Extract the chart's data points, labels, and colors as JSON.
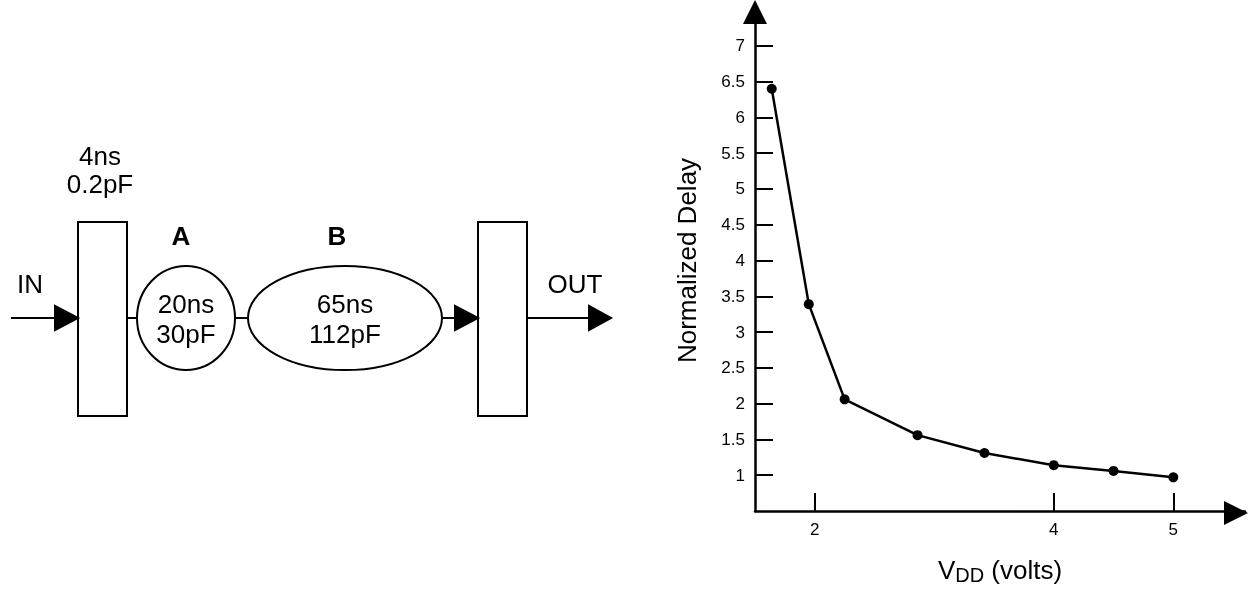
{
  "chart_data": [
    {
      "type": "other",
      "annotations": [
        "4ns",
        "0.2pF",
        "A",
        "B",
        "IN",
        "20ns",
        "30pF",
        "65ns",
        "112pF",
        "OUT"
      ]
    },
    {
      "type": "line",
      "xlabel": "V$_{DD}$ (volts)",
      "ylabel": "Normalized Delay",
      "x": [
        1.64,
        1.95,
        2.25,
        2.86,
        3.42,
        4.0,
        4.5,
        5.0
      ],
      "values": [
        6.4,
        3.39,
        2.06,
        1.56,
        1.31,
        1.14,
        1.06,
        0.97
      ],
      "color": "#000000",
      "xlim": [
        1.5,
        5.6
      ],
      "ylim": [
        0.5,
        7.5
      ],
      "xticks": [
        2,
        4,
        5
      ],
      "yticks": [
        1,
        1.5,
        2,
        2.5,
        3,
        3.5,
        4,
        4.5,
        5,
        5.5,
        6,
        6.5,
        7
      ],
      "grid": false,
      "marker": "circle",
      "line_style": "solid"
    }
  ]
}
